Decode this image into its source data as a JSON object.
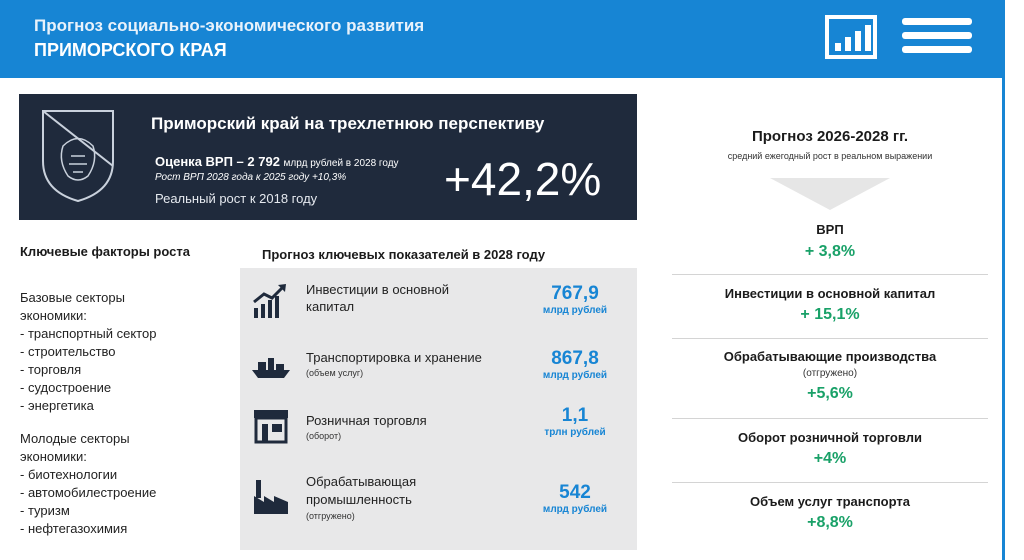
{
  "header": {
    "title_line1": "Прогноз социально-экономического развития",
    "title_line2": "ПРИМОРСКОГО КРАЯ",
    "icons": [
      "bar-chart-icon",
      "list-icon"
    ],
    "color": "#1785d4"
  },
  "summary": {
    "title": "Приморский край на трехлетнюю перспективу",
    "grp_label": "Оценка ВРП – 2  792",
    "grp_unit": "млрд рублей в 2028 году",
    "grp_growth": "Рост ВРП 2028 года к 2025 году +10,3%",
    "real_growth": "Реальный рост к 2018 году",
    "big_value": "+42,2%"
  },
  "key_factors": {
    "title": "Ключевые факторы роста",
    "group1_title1": "Базовые секторы",
    "group1_title2": "экономики:",
    "group1": [
      "- транспортный сектор",
      "- строительство",
      "- торговля",
      "- судостроение",
      "- энергетика"
    ],
    "group2_title1": "Молодые секторы",
    "group2_title2": "экономики:",
    "group2": [
      "- биотехнологии",
      "- автомобилестроение",
      "- туризм",
      "- нефтегазохимия"
    ]
  },
  "indicators": {
    "title": "Прогноз ключевых показателей в 2028 году",
    "items": [
      {
        "name1": "Инвестиции в основной",
        "name2": "капитал",
        "sub": "",
        "value": "767,9",
        "unit": "млрд рублей",
        "icon": "growth-chart-icon"
      },
      {
        "name1": "Транспортировка и хранение",
        "name2": "",
        "sub": "(объем услуг)",
        "value": "867,8",
        "unit": "млрд рублей",
        "icon": "ship-icon"
      },
      {
        "name1": "Розничная торговля",
        "name2": "",
        "sub": "(оборот)",
        "value": "1,1",
        "unit": "трлн рублей",
        "icon": "store-icon"
      },
      {
        "name1": "Обрабатывающая",
        "name2": "промышленность",
        "sub": "(отгружено)",
        "value": "542",
        "unit": "млрд рублей",
        "icon": "factory-icon"
      }
    ]
  },
  "forecast": {
    "title": "Прогноз 2026-2028 гг.",
    "subtitle": "средний ежегодный рост в реальном выражении",
    "items": [
      {
        "name": "ВРП",
        "sub": "",
        "value": "+ 3,8%"
      },
      {
        "name": "Инвестиции в основной капитал",
        "sub": "",
        "value": "+ 15,1%"
      },
      {
        "name": "Обрабатывающие производства",
        "sub": "(отгружено)",
        "value": "+5,6%"
      },
      {
        "name": "Оборот розничной торговли",
        "sub": "",
        "value": "+4%"
      },
      {
        "name": "Объем услуг транспорта",
        "sub": "",
        "value": "+8,8%"
      }
    ]
  }
}
